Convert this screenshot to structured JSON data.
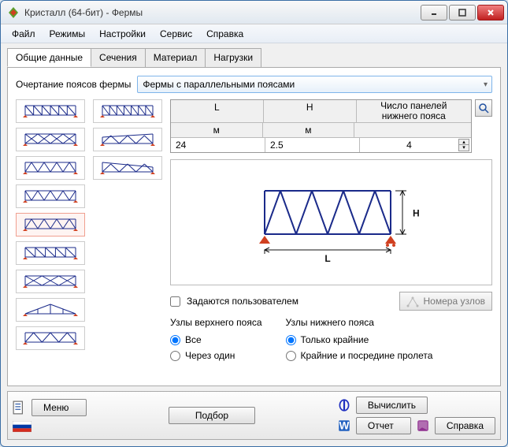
{
  "window": {
    "title": "Кристалл (64-бит) - Фермы"
  },
  "menu": {
    "file": "Файл",
    "modes": "Режимы",
    "settings": "Настройки",
    "service": "Сервис",
    "help": "Справка"
  },
  "tabs": {
    "general": "Общие данные",
    "sections": "Сечения",
    "material": "Материал",
    "loads": "Нагрузки",
    "active": "general"
  },
  "outline": {
    "label": "Очертание поясов фермы",
    "value": "Фермы с параллельными поясами"
  },
  "params": {
    "col_L": "L",
    "col_H": "H",
    "col_panels_l1": "Число панелей",
    "col_panels_l2": "нижнего пояса",
    "unit_L": "м",
    "unit_H": "м",
    "val_L": "24",
    "val_H": "2.5",
    "val_panels": "4"
  },
  "userdef": {
    "label": "Задаются пользователем",
    "checked": false
  },
  "nodesbtn": {
    "label": "Номера узлов"
  },
  "upper": {
    "title": "Узлы верхнего пояса",
    "opt_all": "Все",
    "opt_alt": "Через один",
    "selected": "all"
  },
  "lower": {
    "title": "Узлы нижнего пояса",
    "opt_ends": "Только крайние",
    "opt_mid": "Крайние и посредине пролета",
    "selected": "ends"
  },
  "buttons": {
    "menu": "Меню",
    "podbor": "Подбор",
    "compute": "Вычислить",
    "report": "Отчет",
    "help": "Справка"
  },
  "colors": {
    "truss": "#1a2a8a",
    "support": "#d04020",
    "flag_top": "#ffffff",
    "flag_mid": "#0039a6",
    "flag_bot": "#d52b1e",
    "icon_compute": "#2030c0",
    "icon_report": "#2060c0",
    "icon_help": "#903090",
    "preview_dim": "#111111"
  }
}
